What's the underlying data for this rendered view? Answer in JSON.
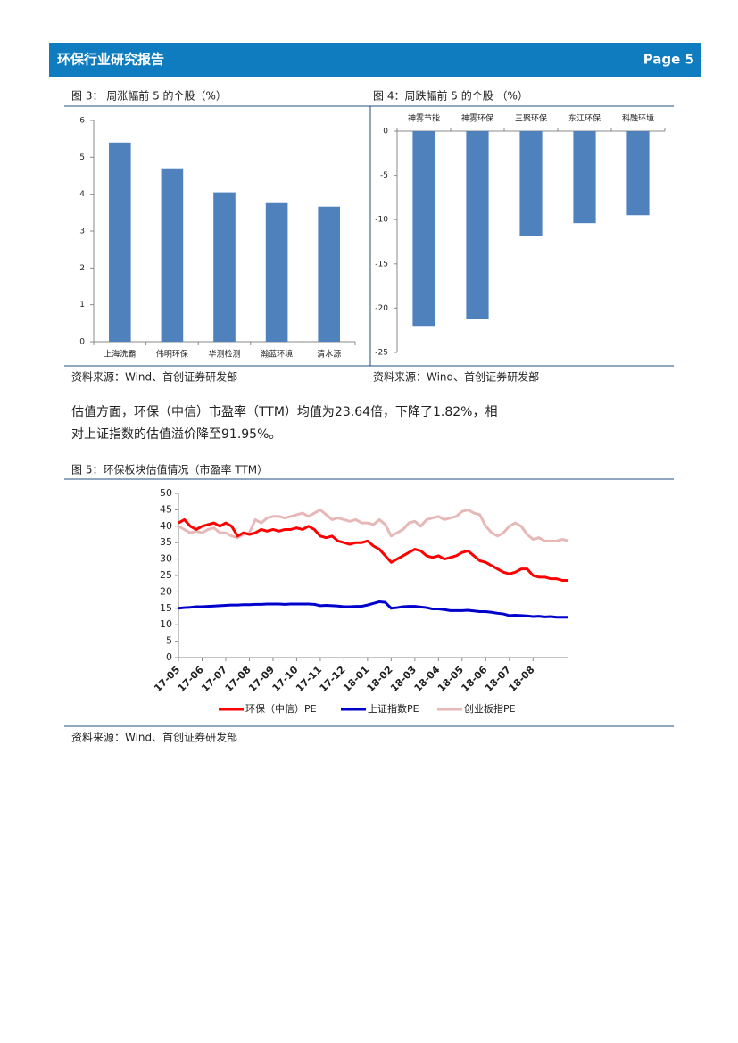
{
  "header": {
    "title": "环保行业研究报告",
    "page": "Page 5"
  },
  "paragraph": "估值方面，环保（中信）市盈率（TTM）均值为23.64倍，下降了1.82%，相对上证指数的估值溢价降至91.95%。",
  "sources": [
    "资料来源：Wind、首创证券研发部",
    "资料来源：Wind、首创证券研发部",
    "资料来源：Wind、首创证券研发部"
  ],
  "chart_data": [
    {
      "type": "bar",
      "title": "图 3： 周涨幅前 5 的个股（%）",
      "categories": [
        "上海洗霸",
        "伟明环保",
        "华测检测",
        "瀚蓝环境",
        "清水源"
      ],
      "values": [
        5.4,
        4.7,
        4.05,
        3.78,
        3.66
      ],
      "color": "#4f81bd",
      "ylim": [
        0,
        6
      ],
      "yticks": [
        0,
        1,
        2,
        3,
        4,
        5,
        6
      ]
    },
    {
      "type": "bar",
      "title": "图 4：周跌幅前 5 的个股 （%）",
      "categories": [
        "神雾节能",
        "神雾环保",
        "三聚环保",
        "东江环保",
        "科融环境"
      ],
      "values": [
        -22,
        -21.2,
        -11.8,
        -10.4,
        -9.5
      ],
      "color": "#4f81bd",
      "ylim": [
        -25,
        0
      ],
      "yticks": [
        0,
        -5,
        -10,
        -15,
        -20,
        -25
      ]
    },
    {
      "type": "line",
      "title": "图 5：环保板块估值情况（市盈率 TTM）",
      "categories": [
        "17-05",
        null,
        null,
        null,
        "17-06",
        null,
        null,
        null,
        "17-07",
        null,
        null,
        null,
        "17-08",
        null,
        null,
        null,
        "17-09",
        null,
        null,
        null,
        "17-10",
        null,
        null,
        null,
        "17-11",
        null,
        null,
        null,
        "17-12",
        null,
        null,
        null,
        "18-01",
        null,
        null,
        null,
        "18-02",
        null,
        null,
        null,
        "18-03",
        null,
        null,
        null,
        "18-04",
        null,
        null,
        null,
        "18-05",
        null,
        null,
        null,
        "18-06",
        null,
        null,
        null,
        "18-07",
        null,
        null,
        null,
        "18-08",
        null,
        null,
        null,
        null,
        null,
        null
      ],
      "series": [
        {
          "name": "环保（中信）PE",
          "color": "#ff0000",
          "values": [
            41,
            42,
            40,
            39,
            40,
            40.5,
            41,
            40,
            41,
            40,
            37,
            38,
            37.5,
            38,
            39,
            38.5,
            39,
            38.5,
            39,
            39,
            39.5,
            39,
            40,
            39,
            37,
            36.5,
            37,
            35.5,
            35,
            34.5,
            35,
            35,
            35.5,
            34,
            33,
            31,
            29,
            30,
            31,
            32,
            33,
            32.5,
            31,
            30.5,
            31,
            30,
            30.5,
            31,
            32,
            32.5,
            31,
            29.5,
            29,
            28,
            27,
            26,
            25.5,
            26,
            27,
            27,
            25,
            24.5,
            24.5,
            24,
            24,
            23.5,
            23.5
          ]
        },
        {
          "name": "上证指数PE",
          "color": "#0000cc",
          "values": [
            15,
            15.2,
            15.3,
            15.5,
            15.5,
            15.6,
            15.7,
            15.8,
            15.9,
            16,
            16,
            16.1,
            16.1,
            16.2,
            16.2,
            16.3,
            16.3,
            16.3,
            16.2,
            16.3,
            16.3,
            16.3,
            16.3,
            16.2,
            15.8,
            15.9,
            15.8,
            15.7,
            15.5,
            15.5,
            15.6,
            15.6,
            16,
            16.5,
            17,
            16.8,
            15,
            15.2,
            15.5,
            15.6,
            15.6,
            15.4,
            15.2,
            14.8,
            14.8,
            14.6,
            14.3,
            14.3,
            14.3,
            14.4,
            14.2,
            14,
            14,
            13.8,
            13.5,
            13.3,
            12.8,
            12.9,
            12.8,
            12.7,
            12.5,
            12.6,
            12.4,
            12.5,
            12.3,
            12.3,
            12.3
          ]
        },
        {
          "name": "创业板指PE",
          "color": "#e6b8b7",
          "values": [
            40,
            39,
            38,
            38.5,
            38,
            39,
            39.5,
            38,
            38,
            37,
            36.5,
            37.5,
            38,
            42,
            41,
            42.5,
            43,
            43,
            42.5,
            43,
            43.5,
            44,
            43,
            44,
            45,
            43.5,
            42,
            42.5,
            42,
            41.5,
            42,
            41,
            41,
            40.5,
            42,
            40.5,
            37,
            38,
            39,
            41,
            41.5,
            40,
            42,
            42.5,
            43,
            42,
            42.5,
            43,
            44.5,
            45,
            44,
            43.5,
            40,
            38,
            37,
            38,
            40,
            41,
            40,
            37.5,
            36,
            36.5,
            35.5,
            35.5,
            35.5,
            36,
            35.5
          ]
        }
      ],
      "ylim": [
        0,
        50
      ],
      "yticks": [
        0,
        5,
        10,
        15,
        20,
        25,
        30,
        35,
        40,
        45,
        50
      ]
    }
  ]
}
